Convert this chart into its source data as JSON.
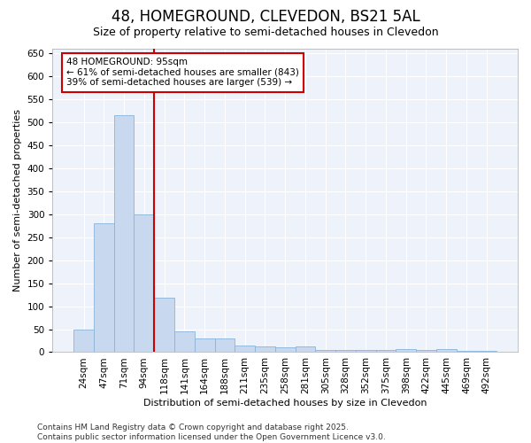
{
  "title_line1": "48, HOMEGROUND, CLEVEDON, BS21 5AL",
  "title_line2": "Size of property relative to semi-detached houses in Clevedon",
  "xlabel": "Distribution of semi-detached houses by size in Clevedon",
  "ylabel": "Number of semi-detached properties",
  "categories": [
    "24sqm",
    "47sqm",
    "71sqm",
    "94sqm",
    "118sqm",
    "141sqm",
    "164sqm",
    "188sqm",
    "211sqm",
    "235sqm",
    "258sqm",
    "281sqm",
    "305sqm",
    "328sqm",
    "352sqm",
    "375sqm",
    "398sqm",
    "422sqm",
    "445sqm",
    "469sqm",
    "492sqm"
  ],
  "values": [
    50,
    280,
    515,
    300,
    118,
    45,
    30,
    30,
    15,
    12,
    10,
    12,
    5,
    5,
    5,
    5,
    7,
    5,
    7,
    3,
    3
  ],
  "bar_color": "#c8d8ee",
  "bar_edge_color": "#8ab4d8",
  "vline_x_index": 3,
  "vline_color": "#cc0000",
  "annotation_text": "48 HOMEGROUND: 95sqm\n← 61% of semi-detached houses are smaller (843)\n39% of semi-detached houses are larger (539) →",
  "annotation_box_color": "white",
  "annotation_box_edge_color": "#cc0000",
  "ylim": [
    0,
    660
  ],
  "yticks": [
    0,
    50,
    100,
    150,
    200,
    250,
    300,
    350,
    400,
    450,
    500,
    550,
    600,
    650
  ],
  "footer_text": "Contains HM Land Registry data © Crown copyright and database right 2025.\nContains public sector information licensed under the Open Government Licence v3.0.",
  "bg_color": "#ffffff",
  "plot_bg_color": "#eef2fb",
  "grid_color": "#ffffff",
  "title1_fontsize": 12,
  "title2_fontsize": 9,
  "axis_label_fontsize": 8,
  "tick_fontsize": 7.5,
  "footer_fontsize": 6.5
}
